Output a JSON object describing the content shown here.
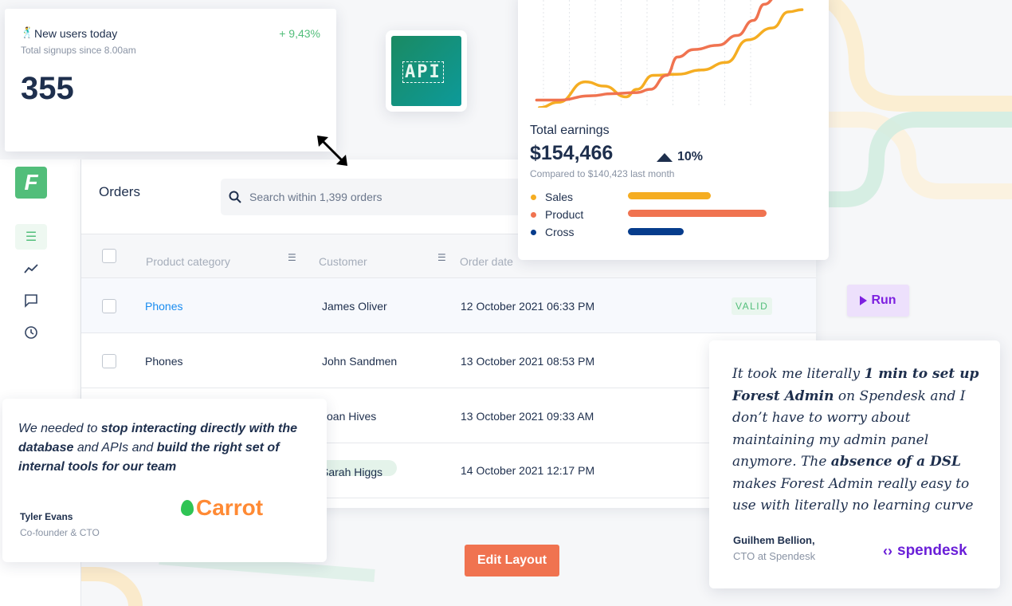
{
  "users_card": {
    "title": "New users today",
    "subtitle": "Total signups since 8.00am",
    "value": "355",
    "change": "+ 9,43%",
    "icon": "person-dancing-icon"
  },
  "api_badge": {
    "label": "API"
  },
  "sidebar": {
    "logo": "F",
    "items": [
      {
        "icon": "list-icon"
      },
      {
        "icon": "chart-line-icon"
      },
      {
        "icon": "chat-icon"
      },
      {
        "icon": "history-icon"
      }
    ]
  },
  "orders": {
    "title": "Orders",
    "search_placeholder": "Search within 1,399 orders",
    "columns": [
      "Product category",
      "Customer",
      "Order date"
    ],
    "rows": [
      {
        "category": "Phones",
        "customer": "James Oliver",
        "date": "12 October 2021 06:33 PM",
        "status": "VALID"
      },
      {
        "category": "Phones",
        "customer": "John Sandmen",
        "date": "13 October 2021 08:53 PM"
      },
      {
        "category": "",
        "customer": "Joan Hives",
        "date": "13 October 2021 09:33 AM"
      },
      {
        "category": "",
        "customer": "Sarah Higgs",
        "date": "14 October 2021 12:17 PM"
      }
    ]
  },
  "earnings": {
    "title": "Total earnings",
    "value": "$154,466",
    "change": "10%",
    "compare": "Compared to $140,423 last month",
    "legend": [
      {
        "label": "Sales",
        "color": "#f5ad22",
        "value": 60
      },
      {
        "label": "Product",
        "color": "#f07350",
        "value": 100
      },
      {
        "label": "Cross",
        "color": "#063c8c",
        "value": 40
      }
    ],
    "chart_data": {
      "type": "line",
      "xlim": [
        0,
        100
      ],
      "ylim": [
        0,
        100
      ],
      "series": [
        {
          "name": "Sales",
          "color": "#f5ad22",
          "points": [
            [
              2,
              0
            ],
            [
              9,
              5
            ],
            [
              19,
              24
            ],
            [
              26,
              20
            ],
            [
              34,
              10
            ],
            [
              38,
              17
            ],
            [
              44,
              30
            ],
            [
              53,
              31
            ],
            [
              62,
              35
            ],
            [
              71,
              42
            ],
            [
              79,
              63
            ],
            [
              88,
              74
            ],
            [
              94,
              89
            ],
            [
              99,
              91
            ]
          ]
        },
        {
          "name": "Product",
          "color": "#f07350",
          "points": [
            [
              1,
              7
            ],
            [
              9,
              7
            ],
            [
              21,
              11
            ],
            [
              29,
              13
            ],
            [
              38,
              14
            ],
            [
              43,
              17
            ],
            [
              49,
              30
            ],
            [
              53,
              47
            ],
            [
              59,
              54
            ],
            [
              68,
              58
            ],
            [
              75,
              67
            ],
            [
              81,
              81
            ],
            [
              85,
              96
            ],
            [
              90,
              104
            ]
          ]
        }
      ]
    }
  },
  "run_button": {
    "label": "Run"
  },
  "edit_layout_button": {
    "label": "Edit Layout"
  },
  "testimonial_carrot": {
    "parts": [
      {
        "t": "We needed to ",
        "b": false
      },
      {
        "t": "stop interacting directly with the database",
        "b": true
      },
      {
        "t": " and APIs and ",
        "b": false
      },
      {
        "t": "build the right set of internal tools for our team",
        "b": true
      }
    ],
    "name": "Tyler Evans",
    "role": "Co-founder & CTO",
    "logo": "Carrot"
  },
  "testimonial_spendesk": {
    "parts": [
      {
        "t": "It took me literally ",
        "b": false
      },
      {
        "t": "1 min to set up Forest Admin",
        "b": true
      },
      {
        "t": " on Spendesk and I don’t have to worry about maintaining my admin panel anymore. The ",
        "b": false
      },
      {
        "t": "absence of a DSL",
        "b": true
      },
      {
        "t": " makes Forest Admin really easy to use with literally no learning curve",
        "b": false
      }
    ],
    "name": "Guilhem Bellion,",
    "role": "CTO at Spendesk",
    "logo": "spendesk"
  }
}
